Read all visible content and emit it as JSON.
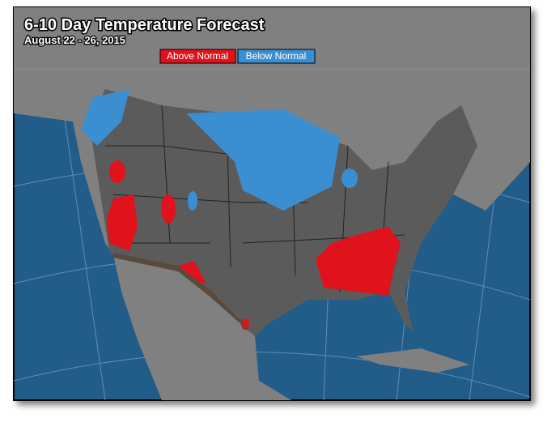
{
  "header": {
    "title": "6-10 Day Temperature Forecast",
    "date": "August 22 - 26, 2015"
  },
  "legend": [
    {
      "label": "Above Normal",
      "color": "#e0121b"
    },
    {
      "label": "Below Normal",
      "color": "#3b8fd1"
    }
  ]
}
